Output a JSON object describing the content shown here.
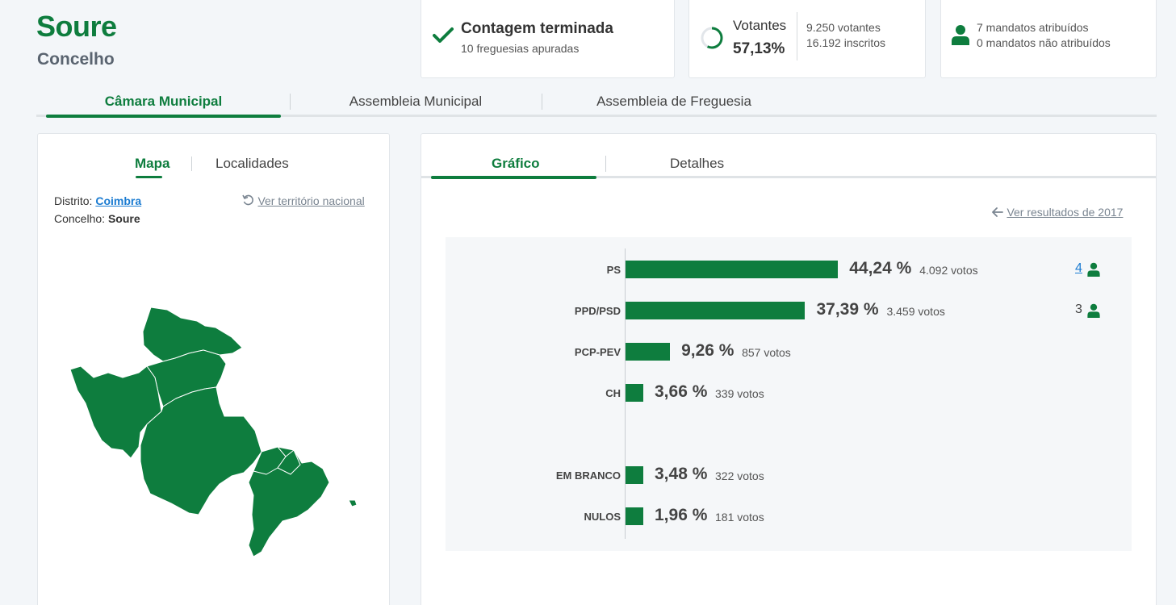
{
  "header": {
    "title": "Soure",
    "subtitle": "Concelho"
  },
  "count_card": {
    "title": "Contagem terminada",
    "detail": "10 freguesias apuradas"
  },
  "turnout_card": {
    "label": "Votantes",
    "value": "57,13%",
    "progress": 0.5713,
    "voters": "9.250 votantes",
    "registered": "16.192 inscritos"
  },
  "seats_card": {
    "assigned": "7 mandatos atribuídos",
    "unassigned": "0 mandatos não atribuídos"
  },
  "main_tabs": [
    {
      "label": "Câmara Municipal",
      "active": true
    },
    {
      "label": "Assembleia Municipal",
      "active": false
    },
    {
      "label": "Assembleia de Freguesia",
      "active": false
    }
  ],
  "left_panel": {
    "tabs": [
      {
        "label": "Mapa",
        "active": true
      },
      {
        "label": "Localidades",
        "active": false
      }
    ],
    "district_label": "Distrito:",
    "district_value": "Coimbra",
    "municipality_label": "Concelho:",
    "municipality_value": "Soure",
    "national_link": "Ver território nacional"
  },
  "right_panel": {
    "tabs": [
      {
        "label": "Gráfico",
        "active": true
      },
      {
        "label": "Detalhes",
        "active": false
      }
    ],
    "prev_results_link": "Ver resultados de 2017"
  },
  "colors": {
    "brand_green": "#0e7d3e",
    "link_blue": "#1a7bd1"
  },
  "chart_data": {
    "type": "bar",
    "orientation": "horizontal",
    "categories": [
      "PS",
      "PPD/PSD",
      "PCP-PEV",
      "CH",
      "EM BRANCO",
      "NULOS"
    ],
    "values": [
      44.24,
      37.39,
      9.26,
      3.66,
      3.48,
      1.96
    ],
    "percent_labels": [
      "44,24 %",
      "37,39 %",
      "9,26 %",
      "3,66 %",
      "3,48 %",
      "1,96 %"
    ],
    "vote_labels": [
      "4.092 votos",
      "3.459 votos",
      "857 votos",
      "339 votos",
      "322 votos",
      "181 votos"
    ],
    "seats": [
      "4",
      "3",
      "",
      "",
      "",
      ""
    ],
    "seat_is_link": [
      true,
      false,
      false,
      false,
      false,
      false
    ]
  }
}
